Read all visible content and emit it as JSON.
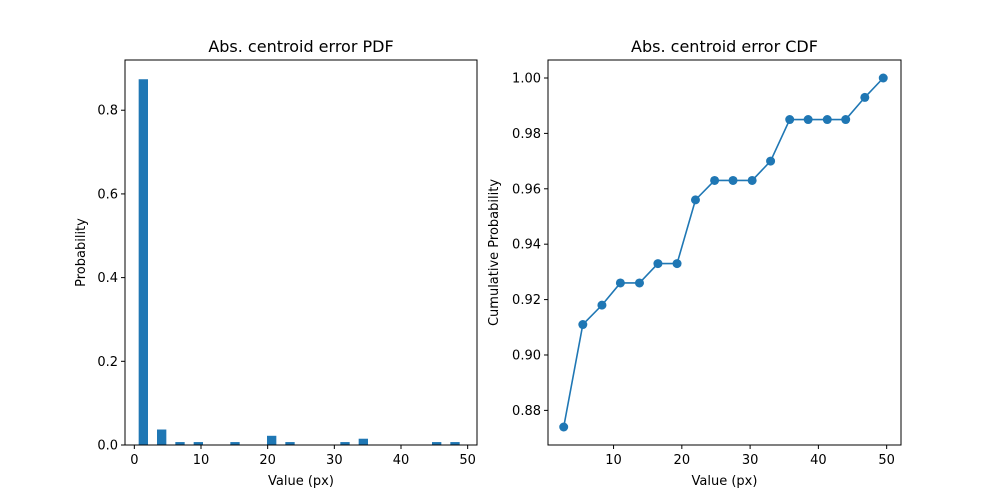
{
  "colors": {
    "series": "#1f77b4"
  },
  "chart_data": [
    {
      "type": "bar",
      "title": "Abs. centroid error PDF",
      "xlabel": "Value (px)",
      "ylabel": "Probability",
      "xlim": [
        -1.4,
        51.4
      ],
      "ylim": [
        0,
        0.92
      ],
      "xticks": [
        0,
        10,
        20,
        30,
        40,
        50
      ],
      "yticks": [
        0.0,
        0.2,
        0.4,
        0.6,
        0.8
      ],
      "ytick_labels": [
        "0.0",
        "0.2",
        "0.4",
        "0.6",
        "0.8"
      ],
      "bar_width": 1.4,
      "x": [
        1.35,
        4.1,
        6.85,
        9.6,
        15.1,
        20.6,
        23.35,
        31.6,
        34.35,
        45.35,
        48.1
      ],
      "values": [
        0.874,
        0.037,
        0.007,
        0.007,
        0.007,
        0.022,
        0.007,
        0.007,
        0.015,
        0.007,
        0.007
      ],
      "grid": false
    },
    {
      "type": "line",
      "title": "Abs. centroid error CDF",
      "xlabel": "Value (px)",
      "ylabel": "Cumulative Probability",
      "xlim": [
        0.4,
        52.1
      ],
      "ylim": [
        0.8675,
        1.0065
      ],
      "xticks": [
        10,
        20,
        30,
        40,
        50
      ],
      "yticks": [
        0.88,
        0.9,
        0.92,
        0.94,
        0.96,
        0.98,
        1.0
      ],
      "ytick_labels": [
        "0.88",
        "0.90",
        "0.92",
        "0.94",
        "0.96",
        "0.98",
        "1.00"
      ],
      "x": [
        2.7,
        5.5,
        8.3,
        11.0,
        13.8,
        16.5,
        19.3,
        22.0,
        24.8,
        27.5,
        30.3,
        33.0,
        35.8,
        38.5,
        41.3,
        44.0,
        46.8,
        49.5
      ],
      "values": [
        0.874,
        0.911,
        0.918,
        0.926,
        0.926,
        0.933,
        0.933,
        0.956,
        0.963,
        0.963,
        0.963,
        0.97,
        0.985,
        0.985,
        0.985,
        0.985,
        0.993,
        1.0
      ],
      "marker": "circle",
      "grid": false
    }
  ]
}
